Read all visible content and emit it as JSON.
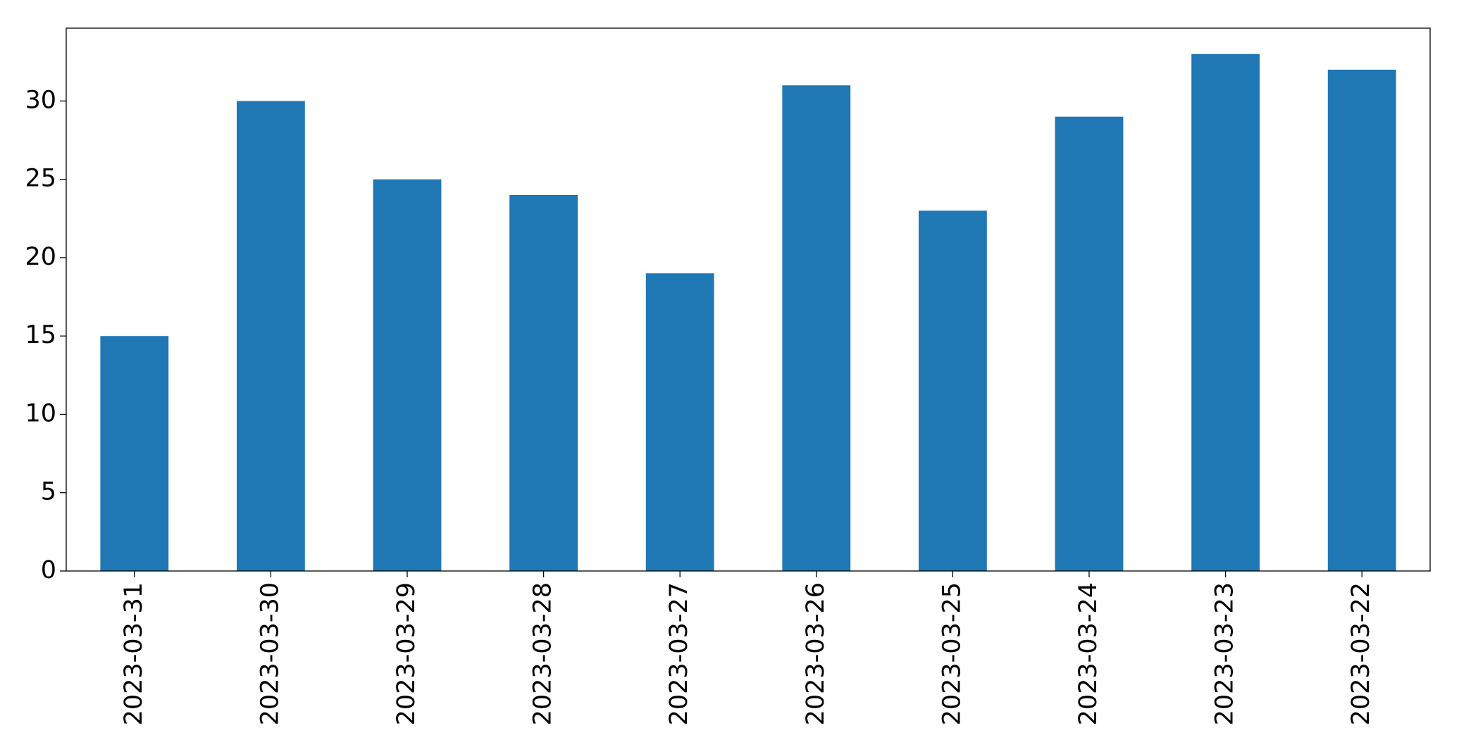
{
  "chart_data": {
    "type": "bar",
    "categories": [
      "2023-03-31",
      "2023-03-30",
      "2023-03-29",
      "2023-03-28",
      "2023-03-27",
      "2023-03-26",
      "2023-03-25",
      "2023-03-24",
      "2023-03-23",
      "2023-03-22"
    ],
    "values": [
      15,
      30,
      25,
      24,
      19,
      31,
      23,
      29,
      33,
      32
    ],
    "color": "#1f77b4",
    "ylim": [
      0,
      34.65
    ],
    "yticks": [
      0,
      5,
      10,
      15,
      20,
      25,
      30
    ],
    "grid": false
  }
}
